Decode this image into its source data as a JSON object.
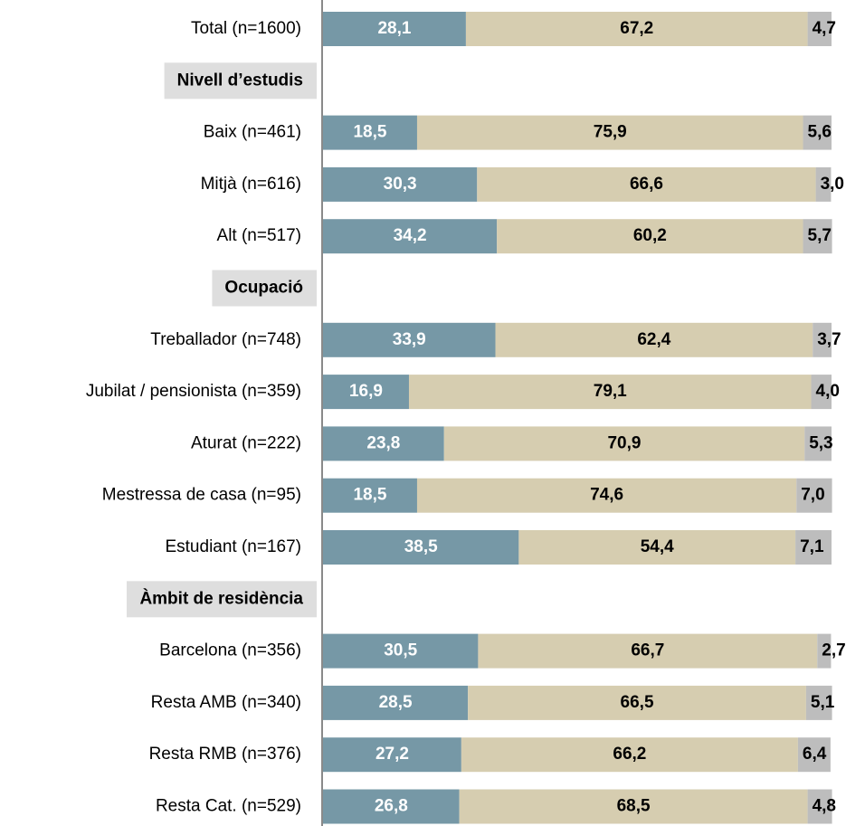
{
  "chart_data": {
    "type": "stacked-bar",
    "categories": [
      "Total (n=1600)",
      "Nivell d’estudis",
      "Baix (n=461)",
      "Mitjà (n=616)",
      "Alt (n=517)",
      "Ocupació",
      "Treballador (n=748)",
      "Jubilat / pensionista (n=359)",
      "Aturat (n=222)",
      "Mestressa de casa (n=95)",
      "Estudiant (n=167)",
      "Àmbit de residència",
      "Barcelona (n=356)",
      "Resta AMB (n=340)",
      "Resta RMB (n=376)",
      "Resta Cat. (n=529)"
    ],
    "xlim": [
      0,
      100
    ],
    "series": [
      {
        "color": "#7698a6",
        "values": [
          28.1,
          null,
          18.5,
          30.3,
          34.2,
          null,
          33.9,
          16.9,
          23.8,
          18.5,
          38.5,
          null,
          30.5,
          28.5,
          27.2,
          26.8
        ],
        "value_labels": [
          "28,1",
          null,
          "18,5",
          "30,3",
          "34,2",
          null,
          "33,9",
          "16,9",
          "23,8",
          "18,5",
          "38,5",
          null,
          "30,5",
          "28,5",
          "27,2",
          "26,8"
        ]
      },
      {
        "color": "#d6cdb0",
        "values": [
          67.2,
          null,
          75.9,
          66.6,
          60.2,
          null,
          62.4,
          79.1,
          70.9,
          74.6,
          54.4,
          null,
          66.7,
          66.5,
          66.2,
          68.5
        ],
        "value_labels": [
          "67,2",
          null,
          "75,9",
          "66,6",
          "60,2",
          null,
          "62,4",
          "79,1",
          "70,9",
          "74,6",
          "54,4",
          null,
          "66,7",
          "66,5",
          "66,2",
          "68,5"
        ]
      },
      {
        "color": "#bdbdbd",
        "values": [
          4.7,
          null,
          5.6,
          3.0,
          5.7,
          null,
          3.7,
          4.0,
          5.3,
          7.0,
          7.1,
          null,
          2.7,
          5.1,
          6.4,
          4.8
        ],
        "value_labels": [
          "4,7",
          null,
          "5,6",
          "3,0",
          "5,7",
          null,
          "3,7",
          "4,0",
          "5,3",
          "7,0",
          "7,1",
          null,
          "2,7",
          "5,1",
          "6,4",
          "4,8"
        ]
      }
    ]
  }
}
